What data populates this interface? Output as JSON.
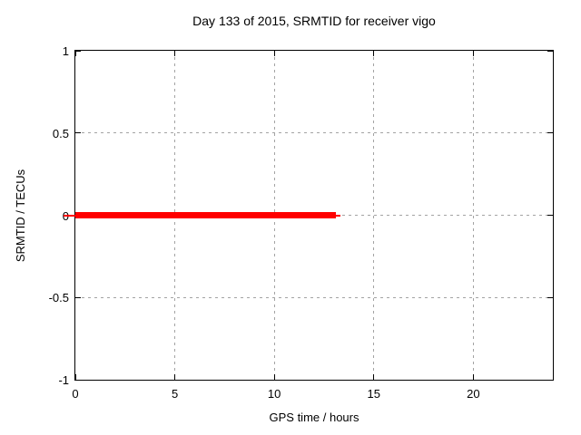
{
  "chart_data": {
    "type": "line",
    "title": "Day 133 of 2015, SRMTID for receiver vigo",
    "xlabel": "GPS time / hours",
    "ylabel": "SRMTID / TECUs",
    "xlim": [
      0,
      24
    ],
    "ylim": [
      -1,
      1
    ],
    "x_ticks": {
      "values": [
        0,
        5,
        10,
        15,
        20
      ],
      "labels": [
        "0",
        "5",
        "10",
        "15",
        "20"
      ]
    },
    "y_ticks": {
      "values": [
        1,
        0.5,
        0,
        -0.5,
        -1
      ],
      "labels": [
        "1",
        "0.5",
        "0",
        "-0.5",
        "-1"
      ]
    },
    "grid": true,
    "legend": "none",
    "series": [
      {
        "name": "SRMTID",
        "color": "#ff0000",
        "x": [
          0,
          13.1
        ],
        "y": [
          0,
          0
        ]
      }
    ]
  },
  "colors": {
    "background": "#ffffff",
    "border": "#000000",
    "grid": "#a3a3a3",
    "series_red": "#ff0000",
    "text": "#000000"
  }
}
